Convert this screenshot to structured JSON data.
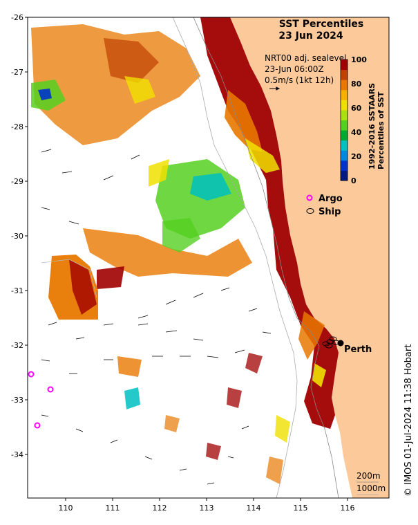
{
  "title": {
    "line1": "SST Percentiles",
    "line2": "23 Jun 2024"
  },
  "current_info": {
    "model": "NRT00 adj. sealevel",
    "time": "23-Jun 06:00Z",
    "scale": "0.5m/s (1kt 12h)"
  },
  "colorbar": {
    "label_line1": "1992-2016 SSTAARS",
    "label_line2": "Percentiles of SST",
    "ticks": [
      "100",
      "80",
      "60",
      "40",
      "20",
      "0"
    ],
    "colors": [
      "#001a80",
      "#0033cc",
      "#0088dd",
      "#00c0c0",
      "#00aa30",
      "#55d020",
      "#a8e010",
      "#f0e000",
      "#f5b000",
      "#e87800",
      "#c04000",
      "#a00000"
    ]
  },
  "legend": {
    "argo": "Argo",
    "ship": "Ship",
    "argo_color": "#ff00ff"
  },
  "city": {
    "name": "Perth"
  },
  "depth_legend": {
    "d200": "200m",
    "d1000": "1000m"
  },
  "axes": {
    "y_ticks": [
      "-26",
      "-27",
      "-28",
      "-29",
      "-30",
      "-31",
      "-32",
      "-33",
      "-34"
    ],
    "x_ticks": [
      "110",
      "111",
      "112",
      "113",
      "114",
      "115",
      "116"
    ]
  },
  "credit": "© IMOS 01-Jul-2024 11:38 Hobart",
  "colors": {
    "land": "#fcc99a",
    "ocean": "#ffffff",
    "coast_hot": "#a00000",
    "warm": "#e87800"
  }
}
